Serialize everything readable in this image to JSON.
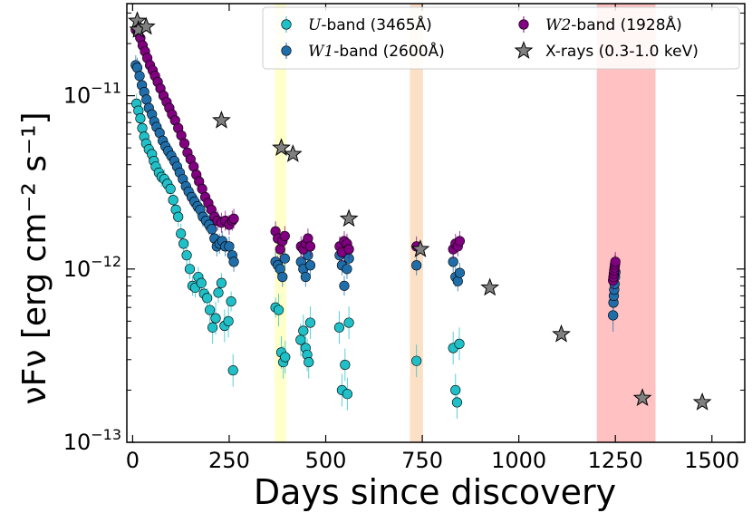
{
  "chart_data": {
    "type": "scatter",
    "xlabel": "Days since discovery",
    "ylabel": "νFν [erg cm⁻² s⁻¹]",
    "x_scale": "linear",
    "y_scale": "log",
    "xlim": [
      -15,
      1585
    ],
    "ylim": [
      1e-13,
      3.4e-11
    ],
    "x_ticks": [
      0,
      250,
      500,
      750,
      1000,
      1250,
      1500
    ],
    "x_tick_labels": [
      "0",
      "250",
      "500",
      "750",
      "1000",
      "1250",
      "1500"
    ],
    "y_ticks": [
      1e-13,
      1e-12,
      1e-11
    ],
    "y_tick_labels": [
      {
        "base": "10",
        "exp": "−13"
      },
      {
        "base": "10",
        "exp": "−12"
      },
      {
        "base": "10",
        "exp": "−11"
      }
    ],
    "grid": false,
    "legend_position": "top-right",
    "shaded_bands": [
      {
        "x0": 368,
        "x1": 398,
        "color": "#ffff66"
      },
      {
        "x0": 718,
        "x1": 752,
        "color": "#f5a65b"
      },
      {
        "x0": 1202,
        "x1": 1354,
        "color": "#ff4d4d"
      }
    ],
    "series": [
      {
        "name_prefix": "U",
        "name_suffix": "-band (3465Å)",
        "marker": "circle",
        "color": "#20c0c8",
        "points": [
          {
            "x": 10,
            "y": 9e-12
          },
          {
            "x": 15,
            "y": 8.2e-12
          },
          {
            "x": 20,
            "y": 7.4e-12
          },
          {
            "x": 25,
            "y": 6.5e-12
          },
          {
            "x": 30,
            "y": 5.8e-12
          },
          {
            "x": 35,
            "y": 5.3e-12
          },
          {
            "x": 42,
            "y": 4.9e-12
          },
          {
            "x": 50,
            "y": 4.6e-12
          },
          {
            "x": 55,
            "y": 4.2e-12
          },
          {
            "x": 60,
            "y": 3.9e-12
          },
          {
            "x": 68,
            "y": 3.6e-12
          },
          {
            "x": 75,
            "y": 3.4e-12
          },
          {
            "x": 82,
            "y": 3.3e-12
          },
          {
            "x": 90,
            "y": 3.1e-12
          },
          {
            "x": 98,
            "y": 2.9e-12
          },
          {
            "x": 105,
            "y": 2.5e-12
          },
          {
            "x": 112,
            "y": 2.2e-12
          },
          {
            "x": 118,
            "y": 2e-12
          },
          {
            "x": 125,
            "y": 1.6e-12
          },
          {
            "x": 132,
            "y": 1.4e-12
          },
          {
            "x": 140,
            "y": 1.2e-12
          },
          {
            "x": 148,
            "y": 1e-12
          },
          {
            "x": 155,
            "y": 8e-13
          },
          {
            "x": 162,
            "y": 7.8e-13
          },
          {
            "x": 170,
            "y": 9e-13
          },
          {
            "x": 178,
            "y": 8.3e-13
          },
          {
            "x": 185,
            "y": 7.2e-13
          },
          {
            "x": 193,
            "y": 6.8e-13
          },
          {
            "x": 200,
            "y": 5.8e-13
          },
          {
            "x": 207,
            "y": 4.6e-13
          },
          {
            "x": 215,
            "y": 5.2e-13
          },
          {
            "x": 222,
            "y": 7.3e-13
          },
          {
            "x": 230,
            "y": 8.3e-13
          },
          {
            "x": 238,
            "y": 4.7e-13
          },
          {
            "x": 248,
            "y": 5e-13
          },
          {
            "x": 255,
            "y": 6.5e-13
          },
          {
            "x": 260,
            "y": 2.6e-13
          },
          {
            "x": 370,
            "y": 6e-13
          },
          {
            "x": 378,
            "y": 5.8e-13
          },
          {
            "x": 385,
            "y": 3.3e-13
          },
          {
            "x": 390,
            "y": 2.9e-13
          },
          {
            "x": 395,
            "y": 3.1e-13
          },
          {
            "x": 435,
            "y": 3.9e-13
          },
          {
            "x": 442,
            "y": 4.4e-13
          },
          {
            "x": 448,
            "y": 3.5e-13
          },
          {
            "x": 452,
            "y": 3.2e-13
          },
          {
            "x": 456,
            "y": 2.9e-13
          },
          {
            "x": 460,
            "y": 4.9e-13
          },
          {
            "x": 535,
            "y": 4.6e-13
          },
          {
            "x": 542,
            "y": 2e-13
          },
          {
            "x": 550,
            "y": 2.8e-13
          },
          {
            "x": 556,
            "y": 1.9e-13
          },
          {
            "x": 560,
            "y": 4.9e-13
          },
          {
            "x": 735,
            "y": 2.95e-13
          },
          {
            "x": 830,
            "y": 3.5e-13
          },
          {
            "x": 836,
            "y": 2e-13
          },
          {
            "x": 840,
            "y": 1.7e-13
          },
          {
            "x": 846,
            "y": 3.7e-13
          }
        ]
      },
      {
        "name_prefix": "W1",
        "name_suffix": "-band (2600Å)",
        "marker": "circle",
        "color": "#1f6eaa",
        "points": [
          {
            "x": 8,
            "y": 1.5e-11
          },
          {
            "x": 12,
            "y": 1.45e-11
          },
          {
            "x": 18,
            "y": 1.3e-11
          },
          {
            "x": 24,
            "y": 1.15e-11
          },
          {
            "x": 30,
            "y": 1.05e-11
          },
          {
            "x": 36,
            "y": 9.5e-12
          },
          {
            "x": 42,
            "y": 8.5e-12
          },
          {
            "x": 50,
            "y": 7.8e-12
          },
          {
            "x": 56,
            "y": 7.1e-12
          },
          {
            "x": 62,
            "y": 6.6e-12
          },
          {
            "x": 70,
            "y": 6.1e-12
          },
          {
            "x": 78,
            "y": 5.5e-12
          },
          {
            "x": 85,
            "y": 5.1e-12
          },
          {
            "x": 92,
            "y": 4.8e-12
          },
          {
            "x": 100,
            "y": 4.5e-12
          },
          {
            "x": 108,
            "y": 4.2e-12
          },
          {
            "x": 115,
            "y": 3.9e-12
          },
          {
            "x": 122,
            "y": 3.6e-12
          },
          {
            "x": 130,
            "y": 3.3e-12
          },
          {
            "x": 138,
            "y": 3e-12
          },
          {
            "x": 145,
            "y": 2.8e-12
          },
          {
            "x": 153,
            "y": 2.6e-12
          },
          {
            "x": 160,
            "y": 2.45e-12
          },
          {
            "x": 168,
            "y": 2.3e-12
          },
          {
            "x": 175,
            "y": 2.2e-12
          },
          {
            "x": 182,
            "y": 2e-12
          },
          {
            "x": 190,
            "y": 1.9e-12
          },
          {
            "x": 198,
            "y": 1.8e-12
          },
          {
            "x": 205,
            "y": 1.7e-12
          },
          {
            "x": 212,
            "y": 1.5e-12
          },
          {
            "x": 218,
            "y": 1.35e-12
          },
          {
            "x": 225,
            "y": 1.4e-12
          },
          {
            "x": 232,
            "y": 1.45e-12
          },
          {
            "x": 240,
            "y": 1.35e-12
          },
          {
            "x": 250,
            "y": 1.35e-12
          },
          {
            "x": 258,
            "y": 1.2e-12
          },
          {
            "x": 262,
            "y": 1.1e-12
          },
          {
            "x": 370,
            "y": 1.1e-12
          },
          {
            "x": 376,
            "y": 1.05e-12
          },
          {
            "x": 382,
            "y": 1e-12
          },
          {
            "x": 388,
            "y": 9e-13
          },
          {
            "x": 394,
            "y": 1.15e-12
          },
          {
            "x": 436,
            "y": 1.1e-12
          },
          {
            "x": 442,
            "y": 1e-12
          },
          {
            "x": 448,
            "y": 9e-13
          },
          {
            "x": 454,
            "y": 1.2e-12
          },
          {
            "x": 460,
            "y": 1.05e-12
          },
          {
            "x": 536,
            "y": 1.2e-12
          },
          {
            "x": 542,
            "y": 1.05e-12
          },
          {
            "x": 548,
            "y": 8e-13
          },
          {
            "x": 555,
            "y": 1e-12
          },
          {
            "x": 560,
            "y": 1.15e-12
          },
          {
            "x": 735,
            "y": 1.05e-12
          },
          {
            "x": 830,
            "y": 1.1e-12
          },
          {
            "x": 836,
            "y": 9e-13
          },
          {
            "x": 842,
            "y": 8.5e-13
          },
          {
            "x": 847,
            "y": 9.5e-13
          },
          {
            "x": 1244,
            "y": 5.4e-13
          },
          {
            "x": 1245,
            "y": 6.4e-13
          },
          {
            "x": 1246,
            "y": 7e-13
          },
          {
            "x": 1247,
            "y": 7.6e-13
          },
          {
            "x": 1248,
            "y": 8.2e-13
          },
          {
            "x": 1249,
            "y": 9e-13
          },
          {
            "x": 1250,
            "y": 9.6e-13
          }
        ]
      },
      {
        "name_prefix": "W2",
        "name_suffix": "-band (1928Å)",
        "marker": "circle",
        "color": "#800080",
        "points": [
          {
            "x": 8,
            "y": 2.4e-11
          },
          {
            "x": 14,
            "y": 2.3e-11
          },
          {
            "x": 20,
            "y": 2.15e-11
          },
          {
            "x": 26,
            "y": 1.95e-11
          },
          {
            "x": 32,
            "y": 1.8e-11
          },
          {
            "x": 38,
            "y": 1.65e-11
          },
          {
            "x": 45,
            "y": 1.5e-11
          },
          {
            "x": 52,
            "y": 1.4e-11
          },
          {
            "x": 58,
            "y": 1.3e-11
          },
          {
            "x": 65,
            "y": 1.2e-11
          },
          {
            "x": 72,
            "y": 1.1e-11
          },
          {
            "x": 80,
            "y": 1e-11
          },
          {
            "x": 88,
            "y": 9.2e-12
          },
          {
            "x": 95,
            "y": 8.5e-12
          },
          {
            "x": 102,
            "y": 7.8e-12
          },
          {
            "x": 110,
            "y": 7.2e-12
          },
          {
            "x": 118,
            "y": 6.5e-12
          },
          {
            "x": 126,
            "y": 5.9e-12
          },
          {
            "x": 134,
            "y": 5.3e-12
          },
          {
            "x": 142,
            "y": 4.7e-12
          },
          {
            "x": 150,
            "y": 4.3e-12
          },
          {
            "x": 158,
            "y": 3.9e-12
          },
          {
            "x": 165,
            "y": 3.5e-12
          },
          {
            "x": 172,
            "y": 3.2e-12
          },
          {
            "x": 180,
            "y": 2.9e-12
          },
          {
            "x": 188,
            "y": 2.6e-12
          },
          {
            "x": 196,
            "y": 2.4e-12
          },
          {
            "x": 204,
            "y": 2.2e-12
          },
          {
            "x": 212,
            "y": 2e-12
          },
          {
            "x": 220,
            "y": 1.9e-12
          },
          {
            "x": 230,
            "y": 1.85e-12
          },
          {
            "x": 240,
            "y": 1.9e-12
          },
          {
            "x": 250,
            "y": 1.8e-12
          },
          {
            "x": 258,
            "y": 1.9e-12
          },
          {
            "x": 262,
            "y": 1.95e-12
          },
          {
            "x": 370,
            "y": 1.65e-12
          },
          {
            "x": 376,
            "y": 1.5e-12
          },
          {
            "x": 382,
            "y": 1.3e-12
          },
          {
            "x": 388,
            "y": 1.45e-12
          },
          {
            "x": 394,
            "y": 1.55e-12
          },
          {
            "x": 436,
            "y": 1.35e-12
          },
          {
            "x": 442,
            "y": 1.3e-12
          },
          {
            "x": 448,
            "y": 1.4e-12
          },
          {
            "x": 454,
            "y": 1.5e-12
          },
          {
            "x": 460,
            "y": 1.35e-12
          },
          {
            "x": 536,
            "y": 1.35e-12
          },
          {
            "x": 542,
            "y": 1.25e-12
          },
          {
            "x": 548,
            "y": 1.45e-12
          },
          {
            "x": 555,
            "y": 1.4e-12
          },
          {
            "x": 560,
            "y": 1.3e-12
          },
          {
            "x": 735,
            "y": 1.35e-12
          },
          {
            "x": 830,
            "y": 1.3e-12
          },
          {
            "x": 836,
            "y": 1.4e-12
          },
          {
            "x": 842,
            "y": 1.35e-12
          },
          {
            "x": 847,
            "y": 1.45e-12
          },
          {
            "x": 1244,
            "y": 8.6e-13
          },
          {
            "x": 1245,
            "y": 9e-13
          },
          {
            "x": 1246,
            "y": 9.4e-13
          },
          {
            "x": 1247,
            "y": 9.8e-13
          },
          {
            "x": 1248,
            "y": 1.02e-12
          },
          {
            "x": 1249,
            "y": 1.06e-12
          },
          {
            "x": 1250,
            "y": 1.1e-12
          }
        ]
      },
      {
        "name": "X-rays (0.3-1.0 keV)",
        "marker": "star",
        "color": "#808080",
        "points": [
          {
            "x": 12,
            "y": 2.7e-11
          },
          {
            "x": 15,
            "y": 2.4e-11
          },
          {
            "x": 35,
            "y": 2.5e-11
          },
          {
            "x": 230,
            "y": 7.2e-12
          },
          {
            "x": 385,
            "y": 5e-12
          },
          {
            "x": 415,
            "y": 4.6e-12
          },
          {
            "x": 560,
            "y": 1.95e-12
          },
          {
            "x": 745,
            "y": 1.3e-12
          },
          {
            "x": 925,
            "y": 7.8e-13
          },
          {
            "x": 1110,
            "y": 4.2e-13
          },
          {
            "x": 1320,
            "y": 1.8e-13
          },
          {
            "x": 1475,
            "y": 1.7e-13
          }
        ]
      }
    ]
  }
}
